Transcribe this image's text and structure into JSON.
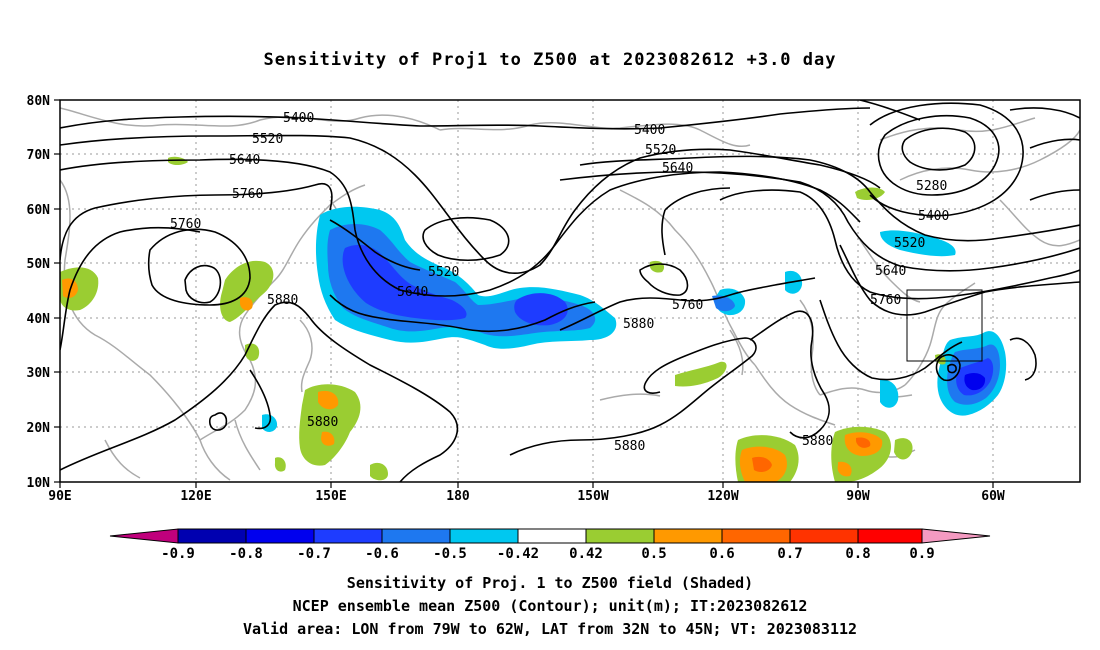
{
  "title": "Sensitivity of Proj1 to Z500 at 2023082612 +3.0 day",
  "map": {
    "lat_labels": [
      "80N",
      "70N",
      "60N",
      "50N",
      "40N",
      "30N",
      "20N",
      "10N"
    ],
    "lon_labels": [
      "90E",
      "120E",
      "150E",
      "180",
      "150W",
      "120W",
      "90W",
      "60W"
    ],
    "contour_labels": [
      {
        "text": "5400"
      },
      {
        "text": "5520"
      },
      {
        "text": "5640"
      },
      {
        "text": "5760"
      },
      {
        "text": "5760"
      },
      {
        "text": "5880"
      },
      {
        "text": "5880"
      },
      {
        "text": "5400"
      },
      {
        "text": "5520"
      },
      {
        "text": "5640"
      },
      {
        "text": "5520"
      },
      {
        "text": "5640"
      },
      {
        "text": "5760"
      },
      {
        "text": "5880"
      },
      {
        "text": "5880"
      },
      {
        "text": "5880"
      },
      {
        "text": "5280"
      },
      {
        "text": "5400"
      },
      {
        "text": "5520"
      },
      {
        "text": "5640"
      },
      {
        "text": "5760"
      }
    ],
    "valid_box": {
      "lon": [
        "79W",
        "62W"
      ],
      "lat": [
        "32N",
        "45N"
      ]
    },
    "colors": {
      "contour": "#000000",
      "coast": "#aaaaaa",
      "grid": "#999999"
    }
  },
  "colorbar": {
    "labels": [
      "-0.9",
      "-0.8",
      "-0.7",
      "-0.6",
      "-0.5",
      "-0.42",
      "0.42",
      "0.5",
      "0.6",
      "0.7",
      "0.8",
      "0.9"
    ],
    "colors": [
      "#c0007c",
      "#0000b0",
      "#0000ee",
      "#1e3cff",
      "#1e78f0",
      "#00c8f0",
      "#ffffff",
      "#9acd32",
      "#ff9900",
      "#ff6600",
      "#ff3300",
      "#ff0000",
      "#f49ac1"
    ]
  },
  "caption": {
    "line1": "Sensitivity of Proj. 1 to Z500 field (Shaded)",
    "line2": "NCEP ensemble mean Z500 (Contour); unit(m); IT:2023082612",
    "line3": "Valid area: LON from 79W to 62W, LAT from 32N to 45N; VT: 2023083112"
  }
}
